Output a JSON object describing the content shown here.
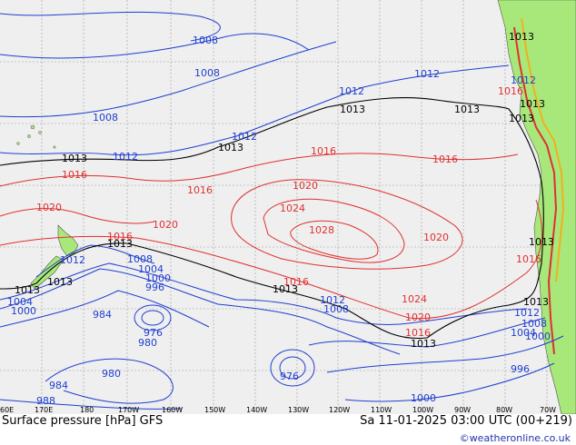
{
  "footer": {
    "title": "Surface pressure [hPa] GFS",
    "valid": "Sa 11-01-2025 03:00 UTC (00+219)",
    "credit": "©weatheronline.co.uk"
  },
  "axis_ticks": [
    "60E",
    "170E",
    "180",
    "170W",
    "160W",
    "150W",
    "140W",
    "130W",
    "120W",
    "110W",
    "100W",
    "90W",
    "80W",
    "70W"
  ],
  "isobar_labels": {
    "blue": [
      "1008",
      "1008",
      "1008",
      "1012",
      "1012",
      "1012",
      "1012",
      "1012",
      "1012",
      "1012",
      "1012",
      "1008",
      "1004",
      "1000",
      "996",
      "976",
      "980",
      "984",
      "980",
      "976",
      "984",
      "988",
      "1004",
      "1000",
      "1008",
      "1008",
      "1004",
      "1000",
      "996",
      "1000"
    ],
    "red": [
      "1016",
      "1016",
      "1016",
      "1016",
      "1020",
      "1024",
      "1028",
      "1020",
      "1020",
      "1020",
      "1016",
      "1016",
      "1016",
      "1020",
      "1024",
      "1016",
      "1016"
    ],
    "black": [
      "1013",
      "1013",
      "1013",
      "1013",
      "1013",
      "1013",
      "1013",
      "1013",
      "1013",
      "1013",
      "1013",
      "1013",
      "1013",
      "1013"
    ]
  },
  "colors": {
    "ocean": "#efefef",
    "land": "#a8e87a",
    "grid": "#9a9a9a",
    "high_isobar": "#e03030",
    "low_isobar": "#1f3fd0",
    "mean_isobar": "#000000"
  }
}
